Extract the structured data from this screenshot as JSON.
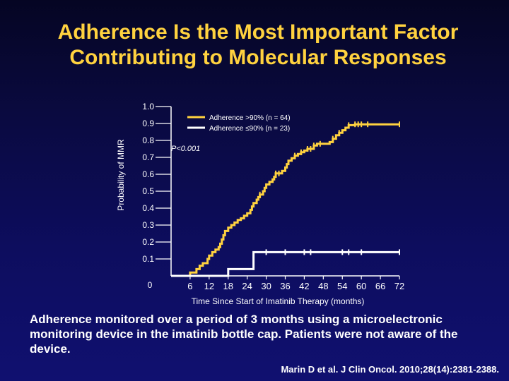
{
  "slide": {
    "title_line1": "Adherence Is the Most Important Factor",
    "title_line2": "Contributing to Molecular Responses",
    "note": "Adherence monitored over a period of 3 months using a microelectronic monitoring device in the imatinib bottle cap. Patients were not aware of the device.",
    "citation": "Marin D et al. J Clin Oncol. 2010;28(14):2381-2388."
  },
  "chart_data": {
    "type": "line",
    "title": "",
    "xlabel": "Time Since Start of Imatinib Therapy (months)",
    "ylabel": "Probability of MMR",
    "xlim": [
      0,
      72
    ],
    "ylim": [
      0,
      1.0
    ],
    "x_ticks": [
      "0",
      "6",
      "12",
      "18",
      "24",
      "30",
      "36",
      "42",
      "48",
      "54",
      "60",
      "66",
      "72"
    ],
    "y_ticks": [
      "0.1",
      "0.2",
      "0.3",
      "0.4",
      "0.5",
      "0.6",
      "0.7",
      "0.8",
      "0.9",
      "1.0"
    ],
    "annotation": "P<0.001",
    "grid": false,
    "legend_position": "top-right",
    "colors": {
      "adherent": "#ffd23f",
      "nonadherent": "#ffffff",
      "axis": "#ffffff",
      "title": "#ffd23f"
    },
    "series": [
      {
        "name": "Adherence >90% (n = 64)",
        "points": [
          [
            0,
            0
          ],
          [
            6,
            0
          ],
          [
            6,
            0.02
          ],
          [
            8,
            0.02
          ],
          [
            8,
            0.04
          ],
          [
            9,
            0.04
          ],
          [
            9,
            0.06
          ],
          [
            10,
            0.06
          ],
          [
            10,
            0.075
          ],
          [
            11.5,
            0.075
          ],
          [
            11.5,
            0.1
          ],
          [
            12,
            0.1
          ],
          [
            12,
            0.12
          ],
          [
            13,
            0.12
          ],
          [
            13,
            0.14
          ],
          [
            14,
            0.14
          ],
          [
            14,
            0.155
          ],
          [
            15,
            0.155
          ],
          [
            15,
            0.17
          ],
          [
            15.5,
            0.17
          ],
          [
            15.5,
            0.19
          ],
          [
            16,
            0.19
          ],
          [
            16,
            0.215
          ],
          [
            16.5,
            0.215
          ],
          [
            16.5,
            0.24
          ],
          [
            17,
            0.24
          ],
          [
            17,
            0.265
          ],
          [
            18,
            0.265
          ],
          [
            18,
            0.285
          ],
          [
            19,
            0.285
          ],
          [
            19,
            0.3
          ],
          [
            20,
            0.3
          ],
          [
            20,
            0.315
          ],
          [
            21,
            0.315
          ],
          [
            21,
            0.33
          ],
          [
            22,
            0.33
          ],
          [
            22,
            0.34
          ],
          [
            23,
            0.34
          ],
          [
            23,
            0.355
          ],
          [
            24,
            0.355
          ],
          [
            24,
            0.37
          ],
          [
            25,
            0.37
          ],
          [
            25,
            0.39
          ],
          [
            25.5,
            0.39
          ],
          [
            25.5,
            0.41
          ],
          [
            26,
            0.41
          ],
          [
            26,
            0.43
          ],
          [
            27,
            0.43
          ],
          [
            27,
            0.45
          ],
          [
            27.5,
            0.45
          ],
          [
            27.5,
            0.465
          ],
          [
            28,
            0.465
          ],
          [
            28,
            0.48
          ],
          [
            29,
            0.48
          ],
          [
            29,
            0.5
          ],
          [
            29.5,
            0.5
          ],
          [
            29.5,
            0.52
          ],
          [
            30,
            0.52
          ],
          [
            30,
            0.54
          ],
          [
            31,
            0.54
          ],
          [
            31,
            0.555
          ],
          [
            32,
            0.555
          ],
          [
            32,
            0.57
          ],
          [
            32.5,
            0.57
          ],
          [
            32.5,
            0.585
          ],
          [
            33,
            0.585
          ],
          [
            33,
            0.605
          ],
          [
            35,
            0.605
          ],
          [
            35,
            0.62
          ],
          [
            36,
            0.62
          ],
          [
            36,
            0.64
          ],
          [
            36.5,
            0.64
          ],
          [
            36.5,
            0.66
          ],
          [
            37,
            0.66
          ],
          [
            37,
            0.68
          ],
          [
            38,
            0.68
          ],
          [
            38,
            0.695
          ],
          [
            39,
            0.695
          ],
          [
            39,
            0.71
          ],
          [
            40,
            0.71
          ],
          [
            40,
            0.72
          ],
          [
            41,
            0.72
          ],
          [
            41,
            0.73
          ],
          [
            42,
            0.73
          ],
          [
            42,
            0.74
          ],
          [
            43,
            0.74
          ],
          [
            43,
            0.75
          ],
          [
            45,
            0.75
          ],
          [
            45,
            0.77
          ],
          [
            46,
            0.77
          ],
          [
            46,
            0.78
          ],
          [
            50,
            0.78
          ],
          [
            50,
            0.79
          ],
          [
            51,
            0.79
          ],
          [
            51,
            0.81
          ],
          [
            52,
            0.81
          ],
          [
            52,
            0.83
          ],
          [
            53,
            0.83
          ],
          [
            53,
            0.845
          ],
          [
            54,
            0.845
          ],
          [
            54,
            0.86
          ],
          [
            55,
            0.86
          ],
          [
            55,
            0.875
          ],
          [
            56,
            0.875
          ],
          [
            56,
            0.89
          ],
          [
            58,
            0.89
          ],
          [
            58,
            0.895
          ],
          [
            72,
            0.895
          ]
        ],
        "censor_x": [
          28,
          33,
          34,
          39,
          41,
          43,
          44,
          45,
          47,
          51,
          53,
          56,
          58,
          59,
          60,
          62,
          72
        ]
      },
      {
        "name": "Adherence ≤90% (n = 23)",
        "points": [
          [
            0,
            0
          ],
          [
            18,
            0
          ],
          [
            18,
            0.04
          ],
          [
            26,
            0.04
          ],
          [
            26,
            0.14
          ],
          [
            72,
            0.14
          ]
        ],
        "censor_x": [
          30,
          36,
          42,
          44,
          54,
          56,
          60,
          72
        ]
      }
    ]
  }
}
